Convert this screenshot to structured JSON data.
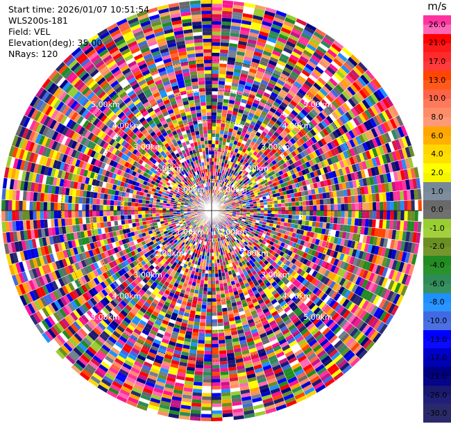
{
  "info": {
    "start_time": "Start time: 2026/01/07 10:51:54",
    "instrument": "WLS200s-181",
    "field": "Field: VEL",
    "elevation": "Elevation(deg): 35.00",
    "nrays": "NRays: 120"
  },
  "chart_data": {
    "type": "heatmap",
    "projection": "polar-ppi",
    "field": "VEL",
    "nrays": 120,
    "elevation_deg": 35.0,
    "range_ring_labels": [
      "1.00km",
      "2.00km",
      "3.00km",
      "4.00km",
      "5.00km"
    ],
    "range_rings_km": [
      1,
      2,
      3,
      4,
      5
    ],
    "max_range_km": 7,
    "colorbar": {
      "unit": "m/s",
      "labels": [
        "26.0",
        "21.0",
        "17.0",
        "13.0",
        "10.0",
        "8.0",
        "6.0",
        "4.0",
        "2.0",
        "1.0",
        "0.0",
        "-1.0",
        "-2.0",
        "-4.0",
        "-6.0",
        "-8.0",
        "-10.0",
        "-13.0",
        "-17.0",
        "-21.0",
        "-26.0",
        "-30.0"
      ],
      "colors": [
        "#ff3399",
        "#ff66b2",
        "#ff0000",
        "#ff3333",
        "#ff4d00",
        "#ff6633",
        "#ff7f50",
        "#ff9966",
        "#ffa500",
        "#ffc000",
        "#ffff00",
        "#dddd22",
        "#708090",
        "#7f8f9f",
        "#696969",
        "#808080",
        "#9acd32",
        "#a6d640",
        "#6b8e23",
        "#7a9a30",
        "#228b22",
        "#2e8b57",
        "#3cb371",
        "#1e90ff",
        "#4682b4",
        "#4169e1",
        "#0000ff",
        "#0000cd",
        "#000080",
        "#191970",
        "#1f1f6a",
        "#2a2a70"
      ],
      "segments": [
        {
          "label": "26.0",
          "top": "#ff33a0",
          "bottom": "#ff66b8"
        },
        {
          "label": "21.0",
          "top": "#ff0000",
          "bottom": "#ff1a1a"
        },
        {
          "label": "17.0",
          "top": "#ff2a2a",
          "bottom": "#ff3b3b"
        },
        {
          "label": "13.0",
          "top": "#ff4500",
          "bottom": "#ff5a1a"
        },
        {
          "label": "10.0",
          "top": "#ff6347",
          "bottom": "#ff7a5c"
        },
        {
          "label": "8.0",
          "top": "#ff8c69",
          "bottom": "#ff9a78"
        },
        {
          "label": "6.0",
          "top": "#ffa500",
          "bottom": "#ffb000"
        },
        {
          "label": "4.0",
          "top": "#ffd700",
          "bottom": "#ffe000"
        },
        {
          "label": "2.0",
          "top": "#ffff00",
          "bottom": "#f5f500"
        },
        {
          "label": "1.0",
          "top": "#778899",
          "bottom": "#7d8d9d"
        },
        {
          "label": "0.0",
          "top": "#696969",
          "bottom": "#707070"
        },
        {
          "label": "-1.0",
          "top": "#9acd32",
          "bottom": "#a3d13d"
        },
        {
          "label": "-2.0",
          "top": "#6b8e23",
          "bottom": "#75962c"
        },
        {
          "label": "-4.0",
          "top": "#228b22",
          "bottom": "#2a922a"
        },
        {
          "label": "-6.0",
          "top": "#2e8b57",
          "bottom": "#379260"
        },
        {
          "label": "-8.0",
          "top": "#1e90ff",
          "bottom": "#2a95ff"
        },
        {
          "label": "-10.0",
          "top": "#4169e1",
          "bottom": "#4a70e3"
        },
        {
          "label": "-13.0",
          "top": "#0000ff",
          "bottom": "#0a0aff"
        },
        {
          "label": "-17.0",
          "top": "#0000cd",
          "bottom": "#0000b5"
        },
        {
          "label": "-21.0",
          "top": "#000080",
          "bottom": "#05058a"
        },
        {
          "label": "-26.0",
          "top": "#191970",
          "bottom": "#20207a"
        },
        {
          "label": "-30.0",
          "top": "#2a2a6a",
          "bottom": "#2a2a6a"
        }
      ]
    }
  }
}
